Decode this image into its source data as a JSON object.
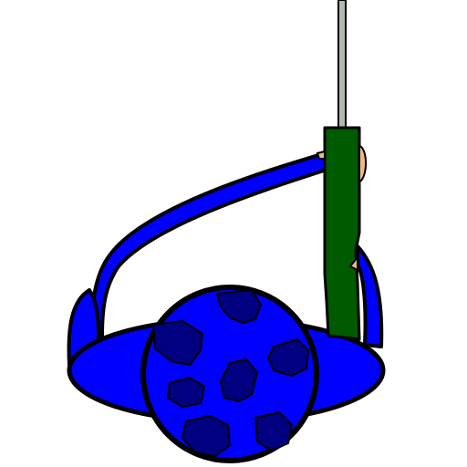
{
  "scene": {
    "subject": "blue-globe-device-with-green-handle",
    "colors": {
      "background": "#ffffff",
      "blue": "#0000ff",
      "dark_blue": "#000080",
      "green": "#005a00",
      "rod_gray": "#b0b8b0",
      "skin": "#f0b888",
      "outline": "#000000"
    }
  }
}
